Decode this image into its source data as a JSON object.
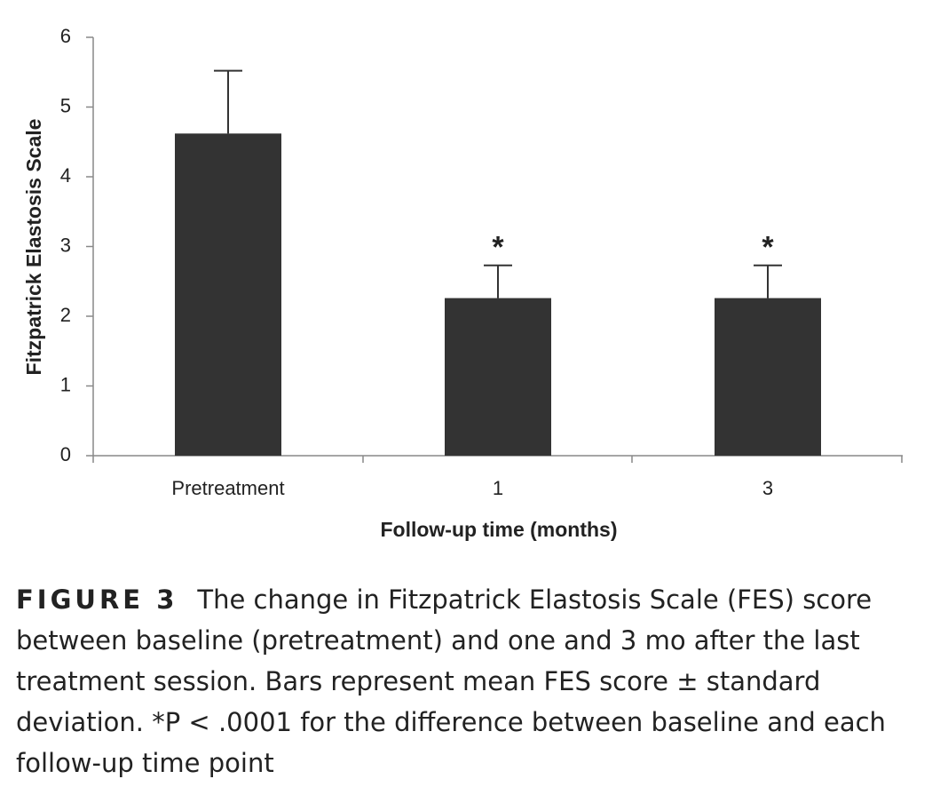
{
  "chart_data": {
    "type": "bar",
    "categories": [
      "Pretreatment",
      "1",
      "3"
    ],
    "values": [
      4.62,
      2.26,
      2.26
    ],
    "errors": [
      0.9,
      0.47,
      0.47
    ],
    "color": "#333333",
    "x_label": "Follow-up time (months)",
    "y_label": "Fitzpatrick Elastosis Scale",
    "ylim": [
      0,
      6
    ],
    "yticks": [
      0,
      1,
      2,
      3,
      4,
      5,
      6
    ],
    "annotations": [
      {
        "text": "*",
        "category": "1"
      },
      {
        "text": "*",
        "category": "3"
      }
    ]
  },
  "caption": {
    "label": "FIGURE 3",
    "text": "The change in Fitzpatrick Elastosis Scale (FES) score between baseline (pretreatment) and one and 3 mo after the last treatment session. Bars represent mean FES score ± standard deviation. *P < .0001 for the difference between baseline and each follow-up time point"
  }
}
